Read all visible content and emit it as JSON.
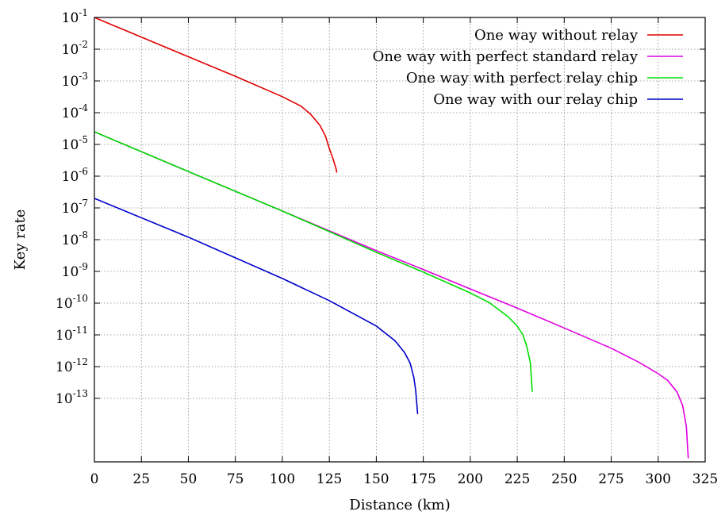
{
  "chart_data": {
    "type": "line",
    "title": "",
    "xlabel": "Distance (km)",
    "ylabel": "Key rate",
    "xlim": [
      0,
      325
    ],
    "ylog": true,
    "ylim": [
      1e-15,
      0.1
    ],
    "x_ticks": [
      0,
      25,
      50,
      75,
      100,
      125,
      150,
      175,
      200,
      225,
      250,
      275,
      300,
      325
    ],
    "y_tick_base": "10",
    "y_ticks": [
      {
        "exp": "-1",
        "value": 0.1
      },
      {
        "exp": "-2",
        "value": 0.01
      },
      {
        "exp": "-3",
        "value": 0.001
      },
      {
        "exp": "-4",
        "value": 0.0001
      },
      {
        "exp": "-5",
        "value": 1e-05
      },
      {
        "exp": "-6",
        "value": 1e-06
      },
      {
        "exp": "-7",
        "value": 1e-07
      },
      {
        "exp": "-8",
        "value": 1e-08
      },
      {
        "exp": "-9",
        "value": 1e-09
      },
      {
        "exp": "-10",
        "value": 1e-10
      },
      {
        "exp": "-11",
        "value": 1e-11
      },
      {
        "exp": "-12",
        "value": 1e-12
      },
      {
        "exp": "-13",
        "value": 1e-13
      }
    ],
    "grid": true,
    "legend_position": "top-right",
    "series": [
      {
        "name": "One way without relay",
        "color": "#e00000",
        "points": [
          [
            0,
            0.1
          ],
          [
            25,
            0.024
          ],
          [
            50,
            0.0058
          ],
          [
            75,
            0.0014
          ],
          [
            100,
            0.00032
          ],
          [
            110,
            0.00016
          ],
          [
            115,
            9e-05
          ],
          [
            120,
            4e-05
          ],
          [
            123,
            1.8e-05
          ],
          [
            125,
            7.5e-06
          ],
          [
            127,
            3.5e-06
          ],
          [
            128.5,
            1.8e-06
          ],
          [
            129,
            1.3e-06
          ]
        ]
      },
      {
        "name": "One way with perfect standard relay",
        "color": "#e000e0",
        "points": [
          [
            0,
            2.5e-05
          ],
          [
            50,
            1.4e-06
          ],
          [
            100,
            8e-08
          ],
          [
            150,
            4.5e-09
          ],
          [
            175,
            1.15e-09
          ],
          [
            200,
            2.8e-10
          ],
          [
            225,
            7e-11
          ],
          [
            250,
            1.65e-11
          ],
          [
            275,
            3.8e-12
          ],
          [
            290,
            1.35e-12
          ],
          [
            300,
            6e-13
          ],
          [
            305,
            3.7e-13
          ],
          [
            310,
            1.6e-13
          ],
          [
            313,
            6e-14
          ],
          [
            315,
            1.3e-14
          ],
          [
            316,
            1.3e-15
          ]
        ]
      },
      {
        "name": "One way with perfect relay chip",
        "color": "#00dd00",
        "points": [
          [
            0,
            2.5e-05
          ],
          [
            50,
            1.4e-06
          ],
          [
            100,
            8e-08
          ],
          [
            150,
            4e-09
          ],
          [
            175,
            9.5e-10
          ],
          [
            200,
            2.1e-10
          ],
          [
            210,
            1.05e-10
          ],
          [
            220,
            3.8e-11
          ],
          [
            225,
            1.9e-11
          ],
          [
            228,
            1e-11
          ],
          [
            230,
            4.5e-12
          ],
          [
            232,
            1.3e-12
          ],
          [
            233,
            1.6e-13
          ]
        ]
      },
      {
        "name": "One way with our relay chip",
        "color": "#0000cc",
        "points": [
          [
            0,
            2e-07
          ],
          [
            50,
            1.2e-08
          ],
          [
            100,
            6e-10
          ],
          [
            125,
            1.2e-10
          ],
          [
            150,
            1.9e-11
          ],
          [
            160,
            6.5e-12
          ],
          [
            165,
            2.8e-12
          ],
          [
            168,
            1.3e-12
          ],
          [
            170,
            4.5e-13
          ],
          [
            171,
            1.7e-13
          ],
          [
            172,
            3.2e-14
          ]
        ]
      }
    ]
  }
}
